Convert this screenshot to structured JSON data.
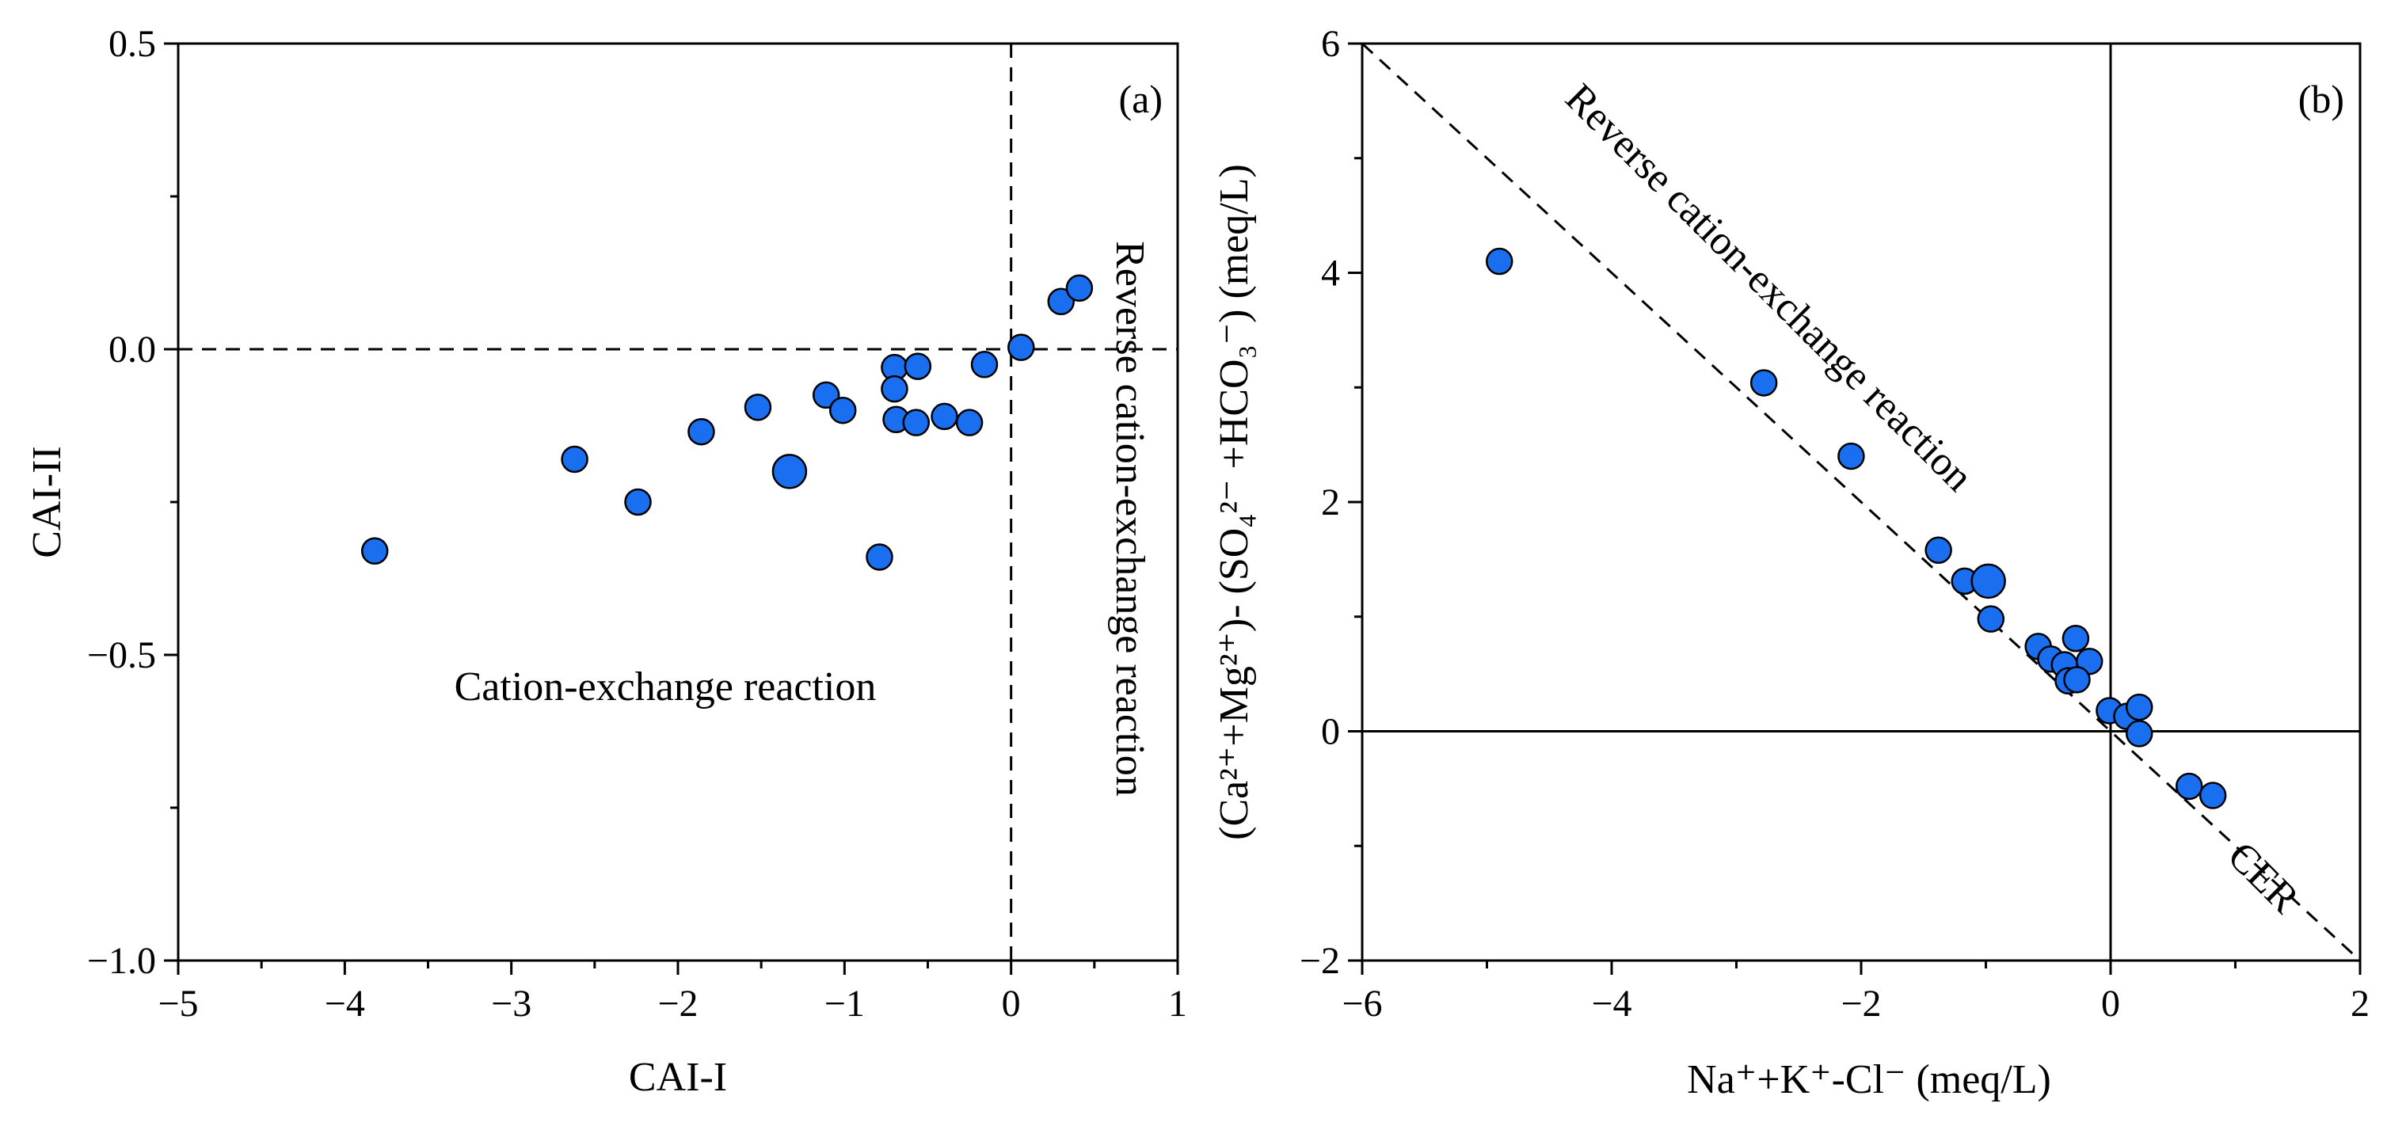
{
  "colors": {
    "marker_fill": "#1a6ef0",
    "marker_stroke": "#000000",
    "axis": "#000000"
  },
  "chart_data": [
    {
      "type": "scatter",
      "panel_label": "(a)",
      "xlabel": "CAI-I",
      "ylabel": "CAI-II",
      "xlim": [
        -5,
        1
      ],
      "ylim": [
        -1.0,
        0.5
      ],
      "x_ticks": [
        -5,
        -4,
        -3,
        -2,
        -1,
        0,
        1
      ],
      "x_tick_labels": [
        "−5",
        "−4",
        "−3",
        "−2",
        "−1",
        "0",
        "1"
      ],
      "y_ticks": [
        -1.0,
        -0.5,
        0.0,
        0.5
      ],
      "y_tick_labels": [
        "−1.0",
        "−0.5",
        "0.0",
        "0.5"
      ],
      "reference_lines": [
        {
          "orientation": "vertical",
          "x": 0,
          "style": "dashed"
        },
        {
          "orientation": "horizontal",
          "y": 0,
          "style": "dashed"
        }
      ],
      "annotations": [
        {
          "text": "Cation-exchange reaction",
          "x": -2.0,
          "y": -0.55,
          "rotation": 0
        },
        {
          "text": "Reverse cation-exchange reaction",
          "x": 0.72,
          "y": -0.27,
          "rotation": 90
        }
      ],
      "series": [
        {
          "name": "samples",
          "points": [
            {
              "x": -3.82,
              "y": -0.33,
              "big": false
            },
            {
              "x": -2.62,
              "y": -0.18,
              "big": false
            },
            {
              "x": -2.24,
              "y": -0.25,
              "big": false
            },
            {
              "x": -1.86,
              "y": -0.135,
              "big": false
            },
            {
              "x": -1.52,
              "y": -0.095,
              "big": false
            },
            {
              "x": -1.33,
              "y": -0.2,
              "big": true
            },
            {
              "x": -1.11,
              "y": -0.075,
              "big": false
            },
            {
              "x": -1.01,
              "y": -0.1,
              "big": false
            },
            {
              "x": -0.79,
              "y": -0.34,
              "big": false
            },
            {
              "x": -0.7,
              "y": -0.03,
              "big": false
            },
            {
              "x": -0.7,
              "y": -0.065,
              "big": false
            },
            {
              "x": -0.69,
              "y": -0.115,
              "big": false
            },
            {
              "x": -0.56,
              "y": -0.028,
              "big": false
            },
            {
              "x": -0.57,
              "y": -0.12,
              "big": false
            },
            {
              "x": -0.4,
              "y": -0.11,
              "big": false
            },
            {
              "x": -0.25,
              "y": -0.12,
              "big": false
            },
            {
              "x": -0.16,
              "y": -0.025,
              "big": false
            },
            {
              "x": 0.06,
              "y": 0.003,
              "big": false
            },
            {
              "x": 0.3,
              "y": 0.078,
              "big": false
            },
            {
              "x": 0.41,
              "y": 0.1,
              "big": false
            }
          ]
        }
      ]
    },
    {
      "type": "scatter",
      "panel_label": "(b)",
      "xlabel": "Na⁺+K⁺-Cl⁻ (meq/L)",
      "ylabel": "(Ca²⁺+Mg²⁺)- (SO₄²⁻ +HCO₃⁻) (meq/L)",
      "xlim": [
        -6,
        2
      ],
      "ylim": [
        -2,
        6
      ],
      "x_ticks": [
        -6,
        -4,
        -2,
        0,
        2
      ],
      "x_tick_labels": [
        "−6",
        "−4",
        "−2",
        "0",
        "2"
      ],
      "y_ticks": [
        -2,
        0,
        2,
        4,
        6
      ],
      "y_tick_labels": [
        "−2",
        "0",
        "2",
        "4",
        "6"
      ],
      "reference_lines": [
        {
          "orientation": "vertical",
          "x": 0,
          "style": "solid"
        },
        {
          "orientation": "horizontal",
          "y": 0,
          "style": "solid"
        },
        {
          "orientation": "diagonal",
          "equation": "y = -x",
          "style": "dashed"
        }
      ],
      "annotations": [
        {
          "text": "Reverse cation-exchange reaction",
          "x": -3.1,
          "y": 3.88,
          "rotation": 45
        },
        {
          "text": "CER",
          "x": 0.72,
          "y": -1.33,
          "rotation": 45
        }
      ],
      "series": [
        {
          "name": "samples",
          "points": [
            {
              "x": -4.9,
              "y": 4.1,
              "big": false
            },
            {
              "x": -2.78,
              "y": 3.04,
              "big": false
            },
            {
              "x": -2.08,
              "y": 2.4,
              "big": false
            },
            {
              "x": -1.38,
              "y": 1.58,
              "big": false
            },
            {
              "x": -1.17,
              "y": 1.31,
              "big": false
            },
            {
              "x": -0.98,
              "y": 1.31,
              "big": true
            },
            {
              "x": -0.96,
              "y": 0.98,
              "big": false
            },
            {
              "x": -0.58,
              "y": 0.74,
              "big": false
            },
            {
              "x": -0.48,
              "y": 0.63,
              "big": false
            },
            {
              "x": -0.37,
              "y": 0.58,
              "big": false
            },
            {
              "x": -0.28,
              "y": 0.81,
              "big": false
            },
            {
              "x": -0.17,
              "y": 0.61,
              "big": false
            },
            {
              "x": -0.34,
              "y": 0.44,
              "big": false
            },
            {
              "x": -0.27,
              "y": 0.45,
              "big": false
            },
            {
              "x": -0.01,
              "y": 0.18,
              "big": false
            },
            {
              "x": 0.13,
              "y": 0.13,
              "big": false
            },
            {
              "x": 0.23,
              "y": 0.21,
              "big": false
            },
            {
              "x": 0.23,
              "y": -0.02,
              "big": false
            },
            {
              "x": 0.63,
              "y": -0.48,
              "big": false
            },
            {
              "x": 0.82,
              "y": -0.56,
              "big": false
            }
          ]
        }
      ]
    }
  ]
}
